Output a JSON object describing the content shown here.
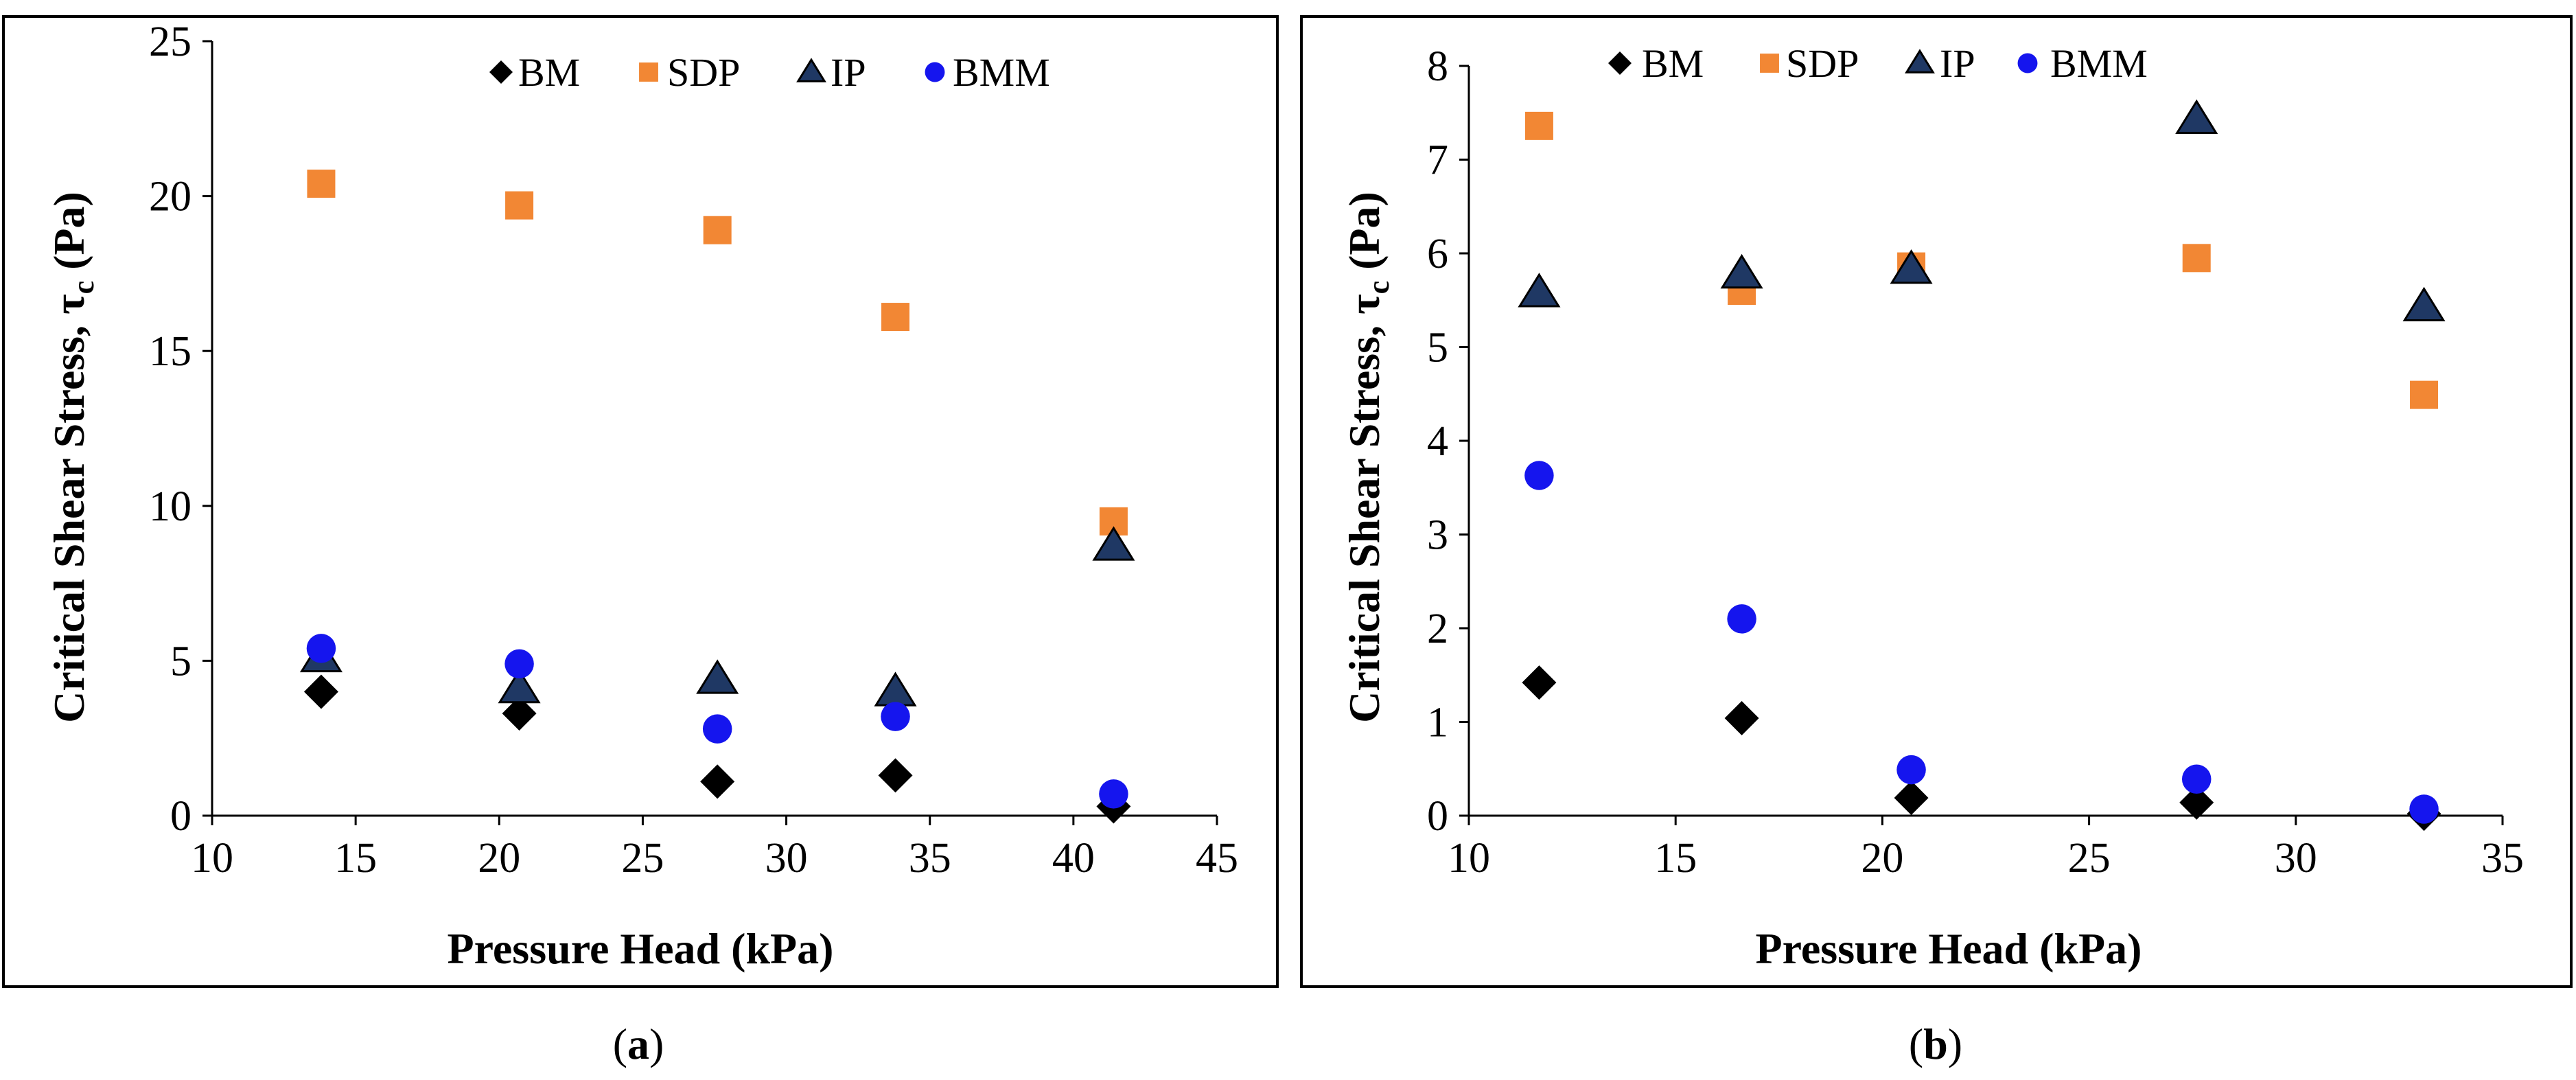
{
  "colors": {
    "BM": "#000000",
    "SDP": "#f28734",
    "IP": "#1f3864",
    "BMM": "#1515ee",
    "frame": "#000000"
  },
  "legend": [
    "BM",
    "SDP",
    "IP",
    "BMM"
  ],
  "chart_data": [
    {
      "type": "scatter",
      "panel_label": "(a)",
      "panel_letter": "a",
      "xlabel": "Pressure Head (kPa)",
      "ylabel": "Critical Shear Stress, τc (Pa)",
      "ylabel_main": "Critical Shear Stress, τ",
      "ylabel_sub": "c",
      "ylabel_end": " (Pa)",
      "xlim": [
        10,
        45
      ],
      "ylim": [
        0,
        25
      ],
      "xticks": [
        10,
        15,
        20,
        25,
        30,
        35,
        40,
        45
      ],
      "yticks": [
        0,
        5,
        10,
        15,
        20,
        25
      ],
      "legend_position": "top-center",
      "x": [
        13.8,
        20.7,
        27.6,
        33.8,
        41.4
      ],
      "series": [
        {
          "name": "BM",
          "marker": "diamond",
          "values": [
            4.0,
            3.3,
            1.1,
            1.3,
            0.3
          ]
        },
        {
          "name": "SDP",
          "marker": "square",
          "values": [
            20.4,
            19.7,
            18.9,
            16.1,
            9.5
          ]
        },
        {
          "name": "IP",
          "marker": "triangle",
          "values": [
            5.1,
            4.1,
            4.4,
            4.0,
            8.7
          ]
        },
        {
          "name": "BMM",
          "marker": "circle",
          "values": [
            5.4,
            4.9,
            2.8,
            3.2,
            0.7
          ]
        }
      ]
    },
    {
      "type": "scatter",
      "panel_label": "(b)",
      "panel_letter": "b",
      "xlabel": "Pressure Head (kPa)",
      "ylabel": "Critical Shear Stress, τc (Pa)",
      "ylabel_main": "Critical Shear Stress, τ",
      "ylabel_sub": "c",
      "ylabel_end": " (Pa)",
      "xlim": [
        10,
        35
      ],
      "ylim": [
        0,
        8
      ],
      "xticks": [
        10,
        15,
        20,
        25,
        30,
        35
      ],
      "yticks": [
        0,
        1,
        2,
        3,
        4,
        5,
        6,
        7,
        8
      ],
      "legend_position": "top-center",
      "x": [
        11.7,
        16.6,
        20.7,
        27.6,
        33.1
      ],
      "series": [
        {
          "name": "BM",
          "marker": "diamond",
          "values": [
            1.42,
            1.04,
            0.19,
            0.14,
            0.02
          ]
        },
        {
          "name": "SDP",
          "marker": "square",
          "values": [
            7.36,
            5.6,
            5.86,
            5.95,
            4.49
          ]
        },
        {
          "name": "IP",
          "marker": "triangle",
          "values": [
            5.58,
            5.78,
            5.83,
            7.43,
            5.43
          ]
        },
        {
          "name": "BMM",
          "marker": "circle",
          "values": [
            3.63,
            2.1,
            0.49,
            0.39,
            0.07
          ]
        }
      ]
    }
  ]
}
